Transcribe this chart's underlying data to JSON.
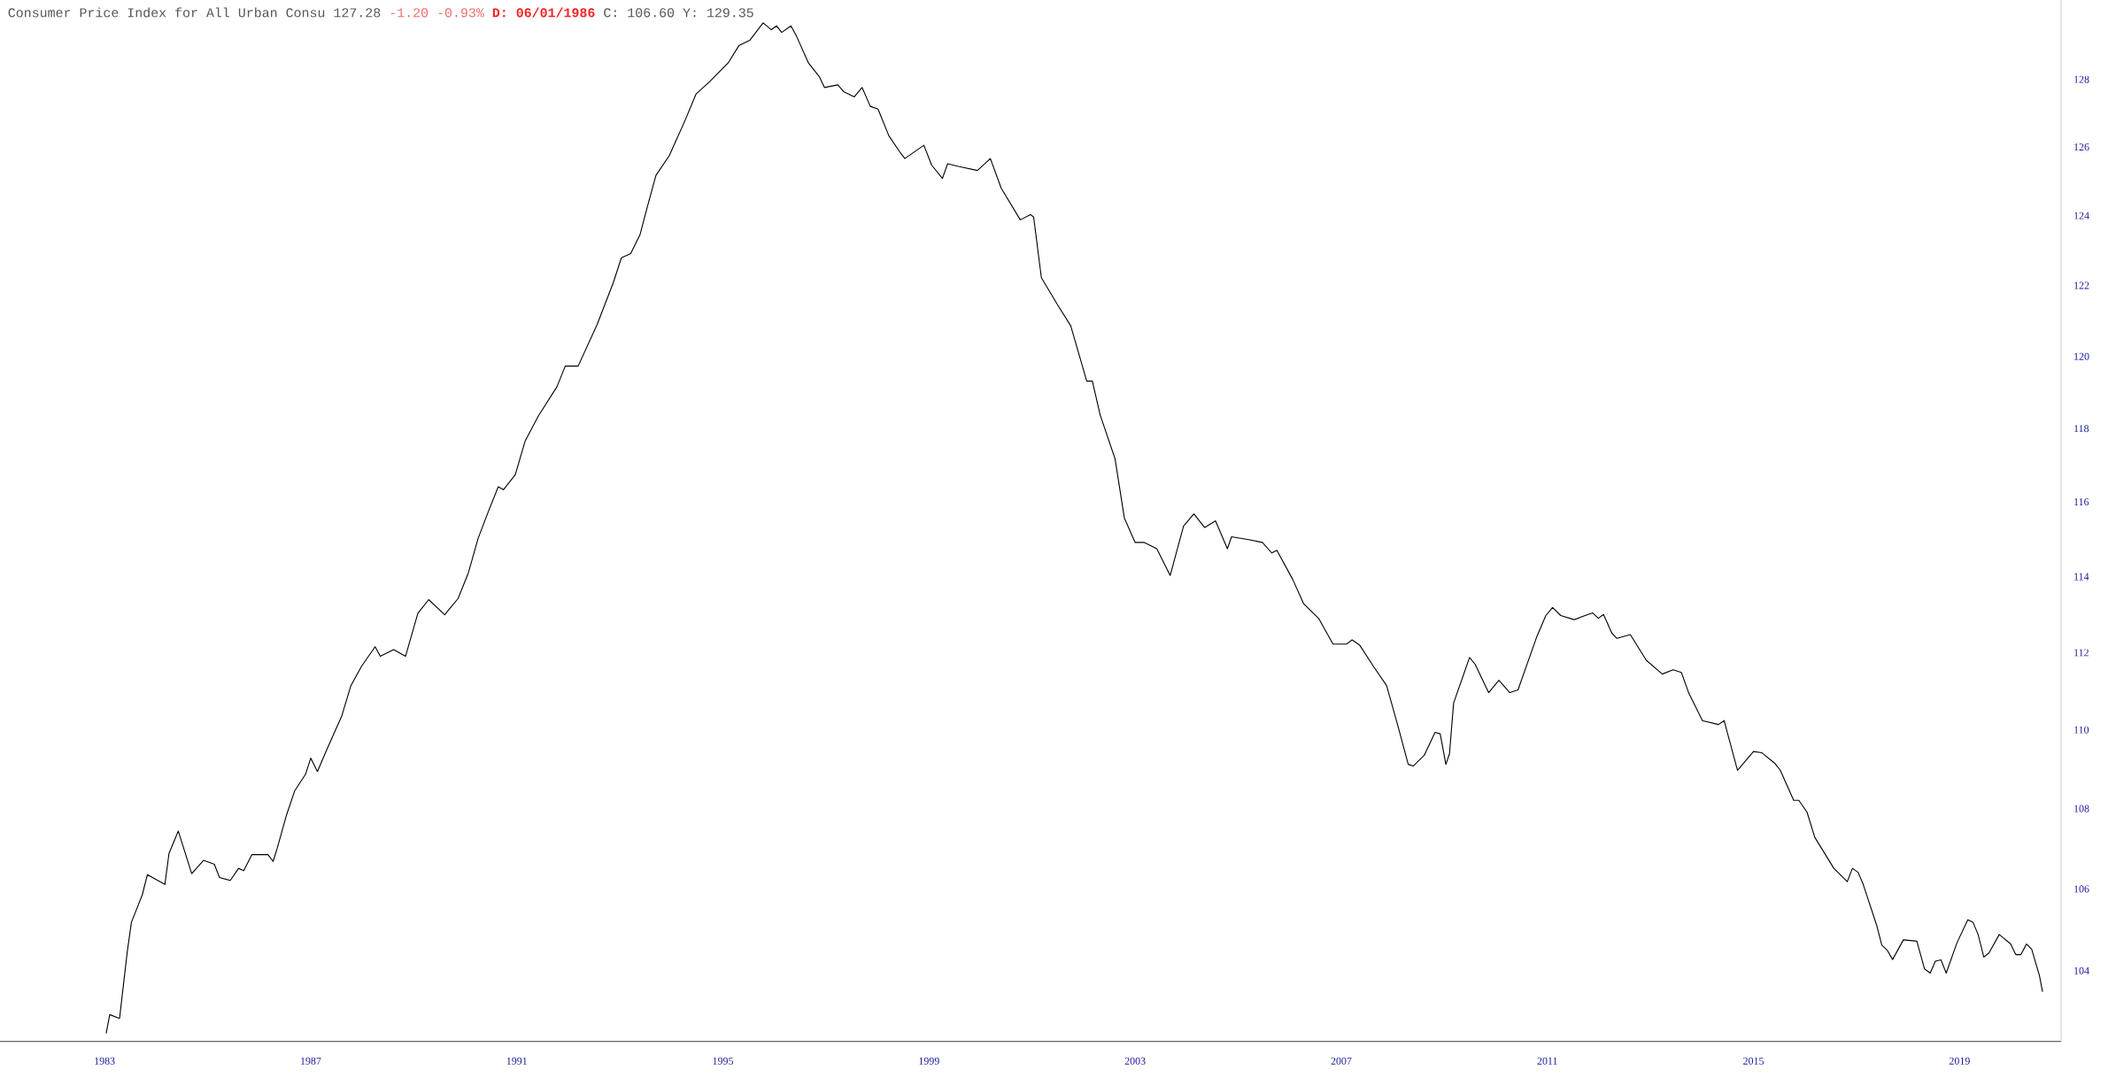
{
  "chart_data": {
    "type": "line",
    "title": "Consumer Price Index for All Urban Consu 127.28",
    "annotations": [
      "-1.20 -0.93%",
      "D: 06/01/1986",
      "C: 106.60 Y: 129.35"
    ],
    "color": "#000000",
    "log": "y",
    "xlim": [
      1980.97,
      2020.97
    ],
    "ylim": [
      102.3,
      130.4
    ],
    "xticks": [
      1983,
      1987,
      1991,
      1995,
      1999,
      2003,
      2007,
      2011,
      2015,
      2019
    ],
    "yticks": [
      104,
      106,
      108,
      110,
      112,
      114,
      116,
      118,
      120,
      122,
      124,
      126,
      128
    ],
    "x": [
      1983.03,
      1983.1,
      1983.29,
      1983.44,
      1983.52,
      1983.73,
      1983.83,
      1984.17,
      1984.25,
      1984.43,
      1984.69,
      1984.92,
      1985.13,
      1985.23,
      1985.44,
      1985.6,
      1985.7,
      1985.86,
      1986.17,
      1986.27,
      1986.35,
      1986.53,
      1986.69,
      1986.9,
      1987.0,
      1987.13,
      1987.31,
      1987.6,
      1987.78,
      1987.99,
      1988.25,
      1988.35,
      1988.61,
      1988.84,
      1989.08,
      1989.29,
      1989.6,
      1989.86,
      1990.06,
      1990.25,
      1990.45,
      1990.64,
      1990.74,
      1990.97,
      1991.16,
      1991.42,
      1991.78,
      1991.94,
      1992.19,
      1992.56,
      1992.87,
      1993.03,
      1993.21,
      1993.39,
      1993.55,
      1993.7,
      1993.96,
      1994.27,
      1994.48,
      1994.74,
      1995.1,
      1995.31,
      1995.52,
      1995.78,
      1995.94,
      1996.04,
      1996.14,
      1996.32,
      1996.43,
      1996.66,
      1996.87,
      1996.97,
      1997.23,
      1997.34,
      1997.55,
      1997.7,
      1997.86,
      1998.01,
      1998.22,
      1998.43,
      1998.53,
      1998.9,
      1999.05,
      1999.26,
      1999.36,
      1999.57,
      1999.94,
      2000.19,
      2000.4,
      2000.77,
      2000.97,
      2001.03,
      2001.18,
      2001.49,
      2001.75,
      2002.06,
      2002.17,
      2002.32,
      2002.61,
      2002.79,
      2003.0,
      2003.18,
      2003.42,
      2003.68,
      2003.94,
      2004.14,
      2004.35,
      2004.56,
      2004.79,
      2004.87,
      2005.23,
      2005.47,
      2005.65,
      2005.75,
      2006.06,
      2006.27,
      2006.56,
      2006.84,
      2007.1,
      2007.21,
      2007.36,
      2007.62,
      2007.88,
      2008.09,
      2008.3,
      2008.4,
      2008.61,
      2008.82,
      2008.92,
      2009.03,
      2009.1,
      2009.18,
      2009.49,
      2009.6,
      2009.86,
      2010.06,
      2010.27,
      2010.43,
      2010.79,
      2010.97,
      2011.1,
      2011.26,
      2011.52,
      2011.73,
      2011.88,
      2011.99,
      2012.09,
      2012.25,
      2012.35,
      2012.61,
      2012.92,
      2013.23,
      2013.44,
      2013.6,
      2013.75,
      2014.01,
      2014.32,
      2014.43,
      2014.69,
      2015.0,
      2015.16,
      2015.42,
      2015.52,
      2015.78,
      2015.88,
      2016.04,
      2016.19,
      2016.56,
      2016.82,
      2016.92,
      2017.03,
      2017.13,
      2017.39,
      2017.49,
      2017.6,
      2017.7,
      2017.91,
      2018.17,
      2018.32,
      2018.43,
      2018.53,
      2018.64,
      2018.74,
      2018.95,
      2019.16,
      2019.26,
      2019.36,
      2019.47,
      2019.57,
      2019.77,
      2019.99,
      2020.09,
      2020.19,
      2020.3,
      2020.4,
      2020.55,
      2020.61
    ],
    "values": [
      102.49,
      102.94,
      102.85,
      104.46,
      105.18,
      105.85,
      106.35,
      106.11,
      106.88,
      107.44,
      106.38,
      106.71,
      106.61,
      106.28,
      106.21,
      106.51,
      106.45,
      106.85,
      106.85,
      106.68,
      107.01,
      107.84,
      108.45,
      108.87,
      109.28,
      108.94,
      109.49,
      110.35,
      111.14,
      111.65,
      112.15,
      111.9,
      112.08,
      111.9,
      113.03,
      113.39,
      112.99,
      113.42,
      114.1,
      115.02,
      115.75,
      116.41,
      116.33,
      116.74,
      117.65,
      118.35,
      119.16,
      119.73,
      119.73,
      120.9,
      122.07,
      122.79,
      122.91,
      123.45,
      124.35,
      125.17,
      125.75,
      126.8,
      127.57,
      127.93,
      128.49,
      129.01,
      129.17,
      129.7,
      129.49,
      129.61,
      129.41,
      129.61,
      129.29,
      128.49,
      128.08,
      127.76,
      127.84,
      127.64,
      127.48,
      127.76,
      127.2,
      127.12,
      126.33,
      125.86,
      125.66,
      126.05,
      125.47,
      125.08,
      125.51,
      125.43,
      125.31,
      125.66,
      124.8,
      123.88,
      124.03,
      123.96,
      122.22,
      121.46,
      120.86,
      119.31,
      119.31,
      118.38,
      117.17,
      115.57,
      114.91,
      114.91,
      114.74,
      114.03,
      115.35,
      115.68,
      115.31,
      115.49,
      114.74,
      115.06,
      114.98,
      114.91,
      114.63,
      114.7,
      113.92,
      113.28,
      112.9,
      112.22,
      112.22,
      112.33,
      112.19,
      111.65,
      111.14,
      110.15,
      109.12,
      109.08,
      109.35,
      109.94,
      109.9,
      109.12,
      109.39,
      110.69,
      111.87,
      111.69,
      110.96,
      111.28,
      110.96,
      111.03,
      112.4,
      112.97,
      113.18,
      112.97,
      112.86,
      112.97,
      113.04,
      112.9,
      113.0,
      112.51,
      112.37,
      112.47,
      111.8,
      111.44,
      111.55,
      111.48,
      110.93,
      110.24,
      110.14,
      110.24,
      108.97,
      109.45,
      109.42,
      109.14,
      108.97,
      108.21,
      108.21,
      107.91,
      107.28,
      106.51,
      106.18,
      106.51,
      106.41,
      106.11,
      105.11,
      104.62,
      104.49,
      104.27,
      104.75,
      104.72,
      104.04,
      103.94,
      104.23,
      104.26,
      103.94,
      104.68,
      105.24,
      105.18,
      104.88,
      104.33,
      104.43,
      104.88,
      104.65,
      104.39,
      104.39,
      104.65,
      104.52,
      103.88,
      103.49
    ]
  }
}
